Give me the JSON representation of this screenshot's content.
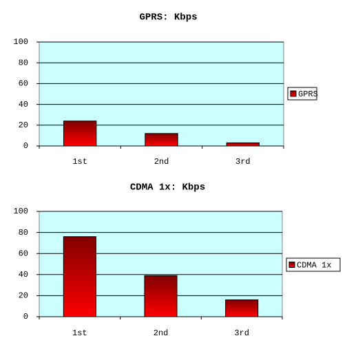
{
  "chart_data": [
    {
      "type": "bar",
      "title": "GPRS: Kbps",
      "categories": [
        "1st",
        "2nd",
        "3rd"
      ],
      "series": [
        {
          "name": "GPRS",
          "color": "#ff0000",
          "values": [
            24,
            12,
            3
          ]
        }
      ],
      "ylim": [
        0,
        100
      ],
      "yticks": [
        0,
        20,
        40,
        60,
        80,
        100
      ],
      "grid": true,
      "legend": "right"
    },
    {
      "type": "bar",
      "title": "CDMA 1x: Kbps",
      "categories": [
        "1st",
        "2nd",
        "3rd"
      ],
      "series": [
        {
          "name": "CDMA 1x",
          "color": "#ff0000",
          "values": [
            76,
            39,
            16
          ]
        }
      ],
      "ylim": [
        0,
        100
      ],
      "yticks": [
        0,
        20,
        40,
        60,
        80,
        100
      ],
      "grid": true,
      "legend": "right"
    }
  ]
}
